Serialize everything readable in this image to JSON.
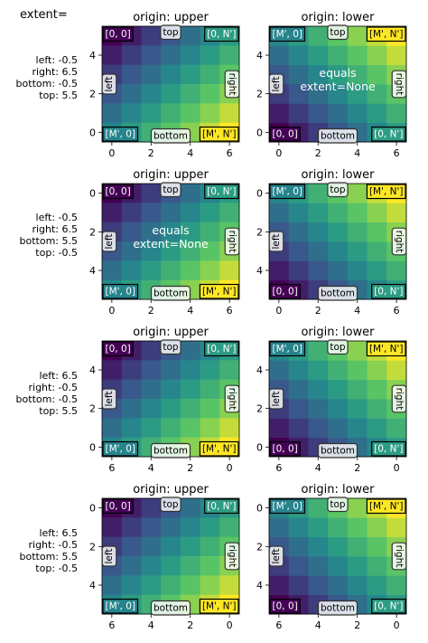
{
  "header": {
    "title": "extent="
  },
  "rows": [
    {
      "extent_label": "left: -0.5\nright: 6.5\nbottom: -0.5\ntop: 5.5"
    },
    {
      "extent_label": "left: -0.5\nright: 6.5\nbottom: 5.5\ntop: -0.5"
    },
    {
      "extent_label": "left: 6.5\nright: -0.5\nbottom: -0.5\ntop: 5.5"
    },
    {
      "extent_label": "left: 6.5\nright: -0.5\nbottom: 5.5\ntop: -0.5"
    }
  ],
  "chart_data": [
    {
      "type": "heatmap",
      "title": "origin: upper",
      "extent": [
        -0.5,
        6.5,
        -0.5,
        5.5
      ],
      "origin": "upper",
      "xticks": [
        "0",
        "2",
        "4",
        "6"
      ],
      "yticks": [
        "0",
        "2",
        "4"
      ],
      "corner_labels": {
        "top_left": "[0, 0]",
        "top_right": "[0, N']",
        "bottom_left": "[M', 0]",
        "bottom_right": "[M', N']"
      },
      "side_labels": {
        "top": "top",
        "bottom": "bottom",
        "left": "left",
        "right": "right"
      },
      "note": ""
    },
    {
      "type": "heatmap",
      "title": "origin: lower",
      "extent": [
        -0.5,
        6.5,
        -0.5,
        5.5
      ],
      "origin": "lower",
      "xticks": [
        "0",
        "2",
        "4",
        "6"
      ],
      "yticks": [
        "0",
        "2",
        "4"
      ],
      "corner_labels": {
        "top_left": "[M', 0]",
        "top_right": "[M', N']",
        "bottom_left": "[0, 0]",
        "bottom_right": "[0, N']"
      },
      "side_labels": {
        "top": "top",
        "bottom": "bottom",
        "left": "left",
        "right": "right"
      },
      "note": "equals\nextent=None"
    },
    {
      "type": "heatmap",
      "title": "origin: upper",
      "extent": [
        -0.5,
        6.5,
        5.5,
        -0.5
      ],
      "origin": "upper",
      "xticks": [
        "0",
        "2",
        "4",
        "6"
      ],
      "yticks": [
        "0",
        "2",
        "4"
      ],
      "corner_labels": {
        "top_left": "[0, 0]",
        "top_right": "[0, N']",
        "bottom_left": "[M', 0]",
        "bottom_right": "[M', N']"
      },
      "side_labels": {
        "top": "top",
        "bottom": "bottom",
        "left": "left",
        "right": "right"
      },
      "note": "equals\nextent=None"
    },
    {
      "type": "heatmap",
      "title": "origin: lower",
      "extent": [
        -0.5,
        6.5,
        5.5,
        -0.5
      ],
      "origin": "lower",
      "xticks": [
        "0",
        "2",
        "4",
        "6"
      ],
      "yticks": [
        "0",
        "2",
        "4"
      ],
      "corner_labels": {
        "top_left": "[M', 0]",
        "top_right": "[M', N']",
        "bottom_left": "[0, 0]",
        "bottom_right": "[0, N']"
      },
      "side_labels": {
        "top": "top",
        "bottom": "bottom",
        "left": "left",
        "right": "right"
      },
      "note": ""
    },
    {
      "type": "heatmap",
      "title": "origin: upper",
      "extent": [
        6.5,
        -0.5,
        -0.5,
        5.5
      ],
      "origin": "upper",
      "xticks": [
        "6",
        "4",
        "2",
        "0"
      ],
      "yticks": [
        "0",
        "2",
        "4"
      ],
      "corner_labels": {
        "top_left": "[0, 0]",
        "top_right": "[0, N']",
        "bottom_left": "[M', 0]",
        "bottom_right": "[M', N']"
      },
      "side_labels": {
        "top": "top",
        "bottom": "bottom",
        "left": "left",
        "right": "right"
      },
      "note": ""
    },
    {
      "type": "heatmap",
      "title": "origin: lower",
      "extent": [
        6.5,
        -0.5,
        -0.5,
        5.5
      ],
      "origin": "lower",
      "xticks": [
        "6",
        "4",
        "2",
        "0"
      ],
      "yticks": [
        "0",
        "2",
        "4"
      ],
      "corner_labels": {
        "top_left": "[M', 0]",
        "top_right": "[M', N']",
        "bottom_left": "[0, 0]",
        "bottom_right": "[0, N']"
      },
      "side_labels": {
        "top": "top",
        "bottom": "bottom",
        "left": "left",
        "right": "right"
      },
      "note": ""
    },
    {
      "type": "heatmap",
      "title": "origin: upper",
      "extent": [
        6.5,
        -0.5,
        5.5,
        -0.5
      ],
      "origin": "upper",
      "xticks": [
        "6",
        "4",
        "2",
        "0"
      ],
      "yticks": [
        "0",
        "2",
        "4"
      ],
      "corner_labels": {
        "top_left": "[0, 0]",
        "top_right": "[0, N']",
        "bottom_left": "[M', 0]",
        "bottom_right": "[M', N']"
      },
      "side_labels": {
        "top": "top",
        "bottom": "bottom",
        "left": "left",
        "right": "right"
      },
      "note": ""
    },
    {
      "type": "heatmap",
      "title": "origin: lower",
      "extent": [
        6.5,
        -0.5,
        5.5,
        -0.5
      ],
      "origin": "lower",
      "xticks": [
        "6",
        "4",
        "2",
        "0"
      ],
      "yticks": [
        "0",
        "2",
        "4"
      ],
      "corner_labels": {
        "top_left": "[M', 0]",
        "top_right": "[M', N']",
        "bottom_left": "[0, 0]",
        "bottom_right": "[0, N']"
      },
      "side_labels": {
        "top": "top",
        "bottom": "bottom",
        "left": "left",
        "right": "right"
      },
      "note": ""
    }
  ],
  "colors": {
    "colormap": "viridis",
    "corner_box_edge": "#000000",
    "label_box_face": "#ffffff"
  }
}
